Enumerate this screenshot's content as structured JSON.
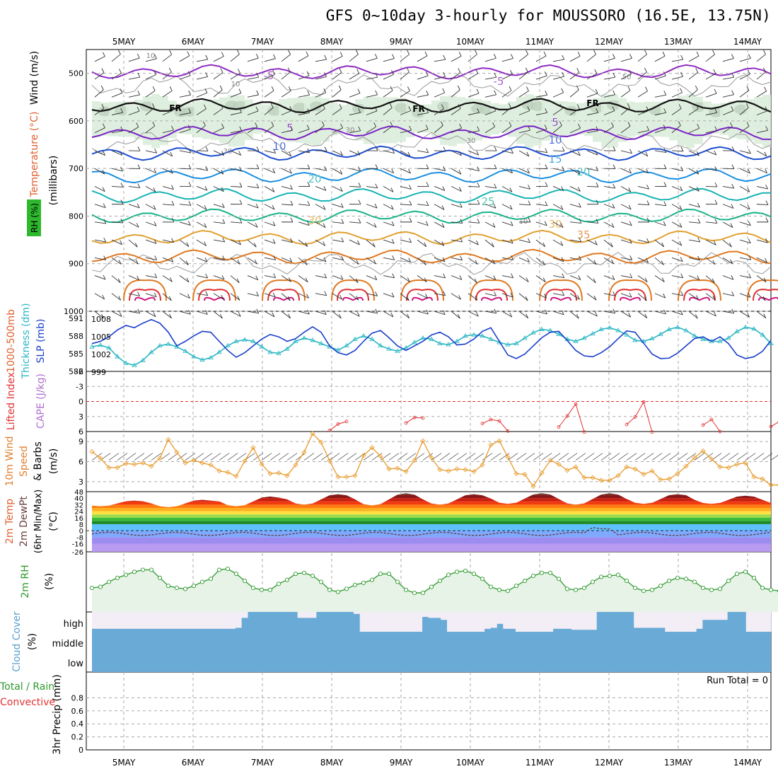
{
  "title": "GFS 0~10day 3-hourly for MOUSSORO (16.5E, 13.75N)",
  "day_labels": [
    "5MAY",
    "6MAY",
    "7MAY",
    "8MAY",
    "9MAY",
    "10MAY",
    "11MAY",
    "12MAY",
    "13MAY",
    "14MAY"
  ],
  "colors": {
    "rh_fill": "#d9ecd9",
    "rh_dark": "#b8ccb8",
    "wind_barb": "#333333",
    "thickness": "#2ab7c4",
    "slp": "#1a3fc9",
    "lifted": "#e33232",
    "wind_speed": "#e89a2a",
    "rh2m": "#2e9a2e",
    "cloud": "#6aaad6",
    "cloud_gap": "#f3eef6"
  },
  "chart_data": [
    {
      "type": "contour",
      "panel": "upper",
      "ylabel_parts": [
        "RH (%)",
        "Temperature (°C)",
        "Wind (m/s)",
        "(millibars)"
      ],
      "y_axis": "pressure",
      "ylim": [
        1000,
        450
      ],
      "yticks": [
        500,
        600,
        700,
        800,
        900,
        1000
      ],
      "freezing_label": "FR",
      "temperature_labels": [
        "-5",
        "-5",
        "5",
        "5",
        "10",
        "10",
        "15",
        "20",
        "20",
        "25",
        "30",
        "30",
        "35"
      ],
      "rh_labels": [
        "10",
        "10",
        "30",
        "30",
        "30",
        "50",
        "10"
      ],
      "isotherms": [
        {
          "name": "-5",
          "color": "#8e2bc2",
          "level": 497
        },
        {
          "name": "0",
          "color": "#111111",
          "level": 568
        },
        {
          "name": "5",
          "color": "#7a22c7",
          "level": 625
        },
        {
          "name": "10",
          "color": "#1f4fd1",
          "level": 668
        },
        {
          "name": "15",
          "color": "#1b8fe0",
          "level": 715
        },
        {
          "name": "20",
          "color": "#19b3b3",
          "level": 757
        },
        {
          "name": "25",
          "color": "#19b38a",
          "level": 800
        },
        {
          "name": "30",
          "color": "#e0a030",
          "level": 845
        },
        {
          "name": "35",
          "color": "#e07820",
          "level": 885
        }
      ]
    },
    {
      "type": "line",
      "panel": "thickness-slp",
      "ylabel_parts": [
        "1000-500mb",
        "Thickness (dm)",
        "SLP (mb)"
      ],
      "left_ticks": [
        "591",
        "588",
        "585",
        "582"
      ],
      "right_ticks": [
        "1008",
        "1005",
        "1002",
        "999"
      ],
      "series": [
        {
          "name": "1000-500mb Thickness (dm)",
          "ylim": [
            582,
            592
          ],
          "values": [
            586,
            586.3,
            585.8,
            584.2,
            583,
            582.6,
            583.5,
            585,
            586.2,
            586.5,
            586,
            585.2,
            584.2,
            583.6,
            584,
            585,
            586.2,
            587,
            587.3,
            587,
            586,
            585,
            584.8,
            585.6,
            587,
            587.6,
            587.2,
            586.6,
            586,
            585.4,
            586.2,
            587.4,
            588,
            587.4,
            586.2,
            585.6,
            585.2,
            585.8,
            586.8,
            587.6,
            587.4,
            586.6,
            586.4,
            587,
            588,
            588.2,
            588,
            587.4,
            586.8,
            586.4,
            586.6,
            587.6,
            588.6,
            589.2,
            589,
            588.3,
            587.4,
            587,
            587.6,
            588.4,
            589.2,
            589.5,
            589,
            588.2,
            587.2,
            587,
            587.5,
            588.3,
            589.2,
            589.6,
            589,
            588,
            587.4,
            587,
            587,
            587.6,
            588.8,
            589.6,
            589.3,
            588.2,
            586.6
          ]
        },
        {
          "name": "SLP (mb)",
          "ylim": [
            998,
            1010
          ],
          "values": [
            1003.5,
            1004,
            1005,
            1006.5,
            1007.5,
            1007,
            1008,
            1008.8,
            1008,
            1006,
            1003,
            1004,
            1005.2,
            1006.2,
            1006,
            1004,
            1002,
            1000.5,
            1001.5,
            1003,
            1004.5,
            1005.5,
            1005,
            1004,
            1004.6,
            1006,
            1007.2,
            1006,
            1003,
            1001.5,
            1001,
            1002,
            1004,
            1005.8,
            1006.4,
            1004.8,
            1003,
            1002,
            1003,
            1004,
            1005.4,
            1006,
            1005,
            1003.2,
            1003.4,
            1004.5,
            1006.2,
            1007,
            1004,
            1001,
            1000.2,
            1001.2,
            1003,
            1004.8,
            1006,
            1006.2,
            1004.2,
            1002,
            1000.8,
            1000.6,
            1001.5,
            1002.8,
            1004.6,
            1006.3,
            1006,
            1003.6,
            1001.2,
            1000.2,
            1000.3,
            1001.4,
            1003,
            1004.6,
            1005,
            1004,
            1005,
            1003.5,
            1001,
            1000.2,
            1000.6,
            1001.8,
            1004.2
          ]
        }
      ]
    },
    {
      "type": "line",
      "panel": "lifted-index",
      "ylabel_parts": [
        "Lifted Index",
        "CAPE (J/kg)"
      ],
      "yticks": [
        "-6",
        "-3",
        "0",
        "3",
        "6"
      ],
      "ylim": [
        6,
        -6
      ],
      "segments": [
        {
          "x": [
            28,
            29,
            30
          ],
          "values": [
            5.8,
            4.5,
            4
          ]
        },
        {
          "x": [
            37,
            38,
            39
          ],
          "values": [
            4.3,
            3.2,
            3.3
          ]
        },
        {
          "x": [
            46,
            47,
            48,
            49
          ],
          "values": [
            4.4,
            3.6,
            3.9,
            5.9
          ]
        },
        {
          "x": [
            55,
            56,
            57,
            58
          ],
          "values": [
            5.1,
            2.9,
            0.5,
            6.1
          ]
        },
        {
          "x": [
            63,
            64,
            65,
            66
          ],
          "values": [
            4.6,
            3.1,
            0.1,
            6.1
          ]
        },
        {
          "x": [
            72,
            73,
            74
          ],
          "values": [
            4.7,
            3.6,
            6.0
          ]
        },
        {
          "x": [
            80,
            81,
            82,
            83
          ],
          "values": [
            5,
            4,
            3.4,
            5.1
          ]
        },
        {
          "x": [
            84,
            85
          ],
          "values": [
            5.2,
            5.3
          ]
        }
      ]
    },
    {
      "type": "line",
      "panel": "wind-10m",
      "ylabel_parts": [
        "10m Wind",
        "Speed",
        "& Barbs",
        "(m/s)"
      ],
      "yticks": [
        "9",
        "6",
        "3"
      ],
      "ylim": [
        1.5,
        10.5
      ],
      "values": [
        7.5,
        6.5,
        5.1,
        5.1,
        5.7,
        5.6,
        5.8,
        5.3,
        6.5,
        9.3,
        7.4,
        5.8,
        6.2,
        5.8,
        5.5,
        4.6,
        4.4,
        3.8,
        6.1,
        8.1,
        5.6,
        4.2,
        4.3,
        3.9,
        5.5,
        7.4,
        10.2,
        8.9,
        6.1,
        3.7,
        3.7,
        3.9,
        6.9,
        8.1,
        6.8,
        4.9,
        5,
        4.5,
        6.2,
        9.1,
        6.6,
        4.8,
        4.6,
        4.9,
        4.8,
        4.5,
        5.5,
        8.5,
        9.1,
        6.7,
        4.2,
        4.1,
        2.3,
        4.3,
        6.2,
        5.6,
        4.7,
        5.2,
        3.6,
        3.6,
        3.2,
        3.2,
        3.9,
        5.2,
        4.9,
        4.1,
        4.6,
        3.3,
        3.4,
        4.2,
        5.3,
        6.6,
        7.6,
        6.4,
        5.2,
        5.1,
        5.6,
        5.8,
        3.7,
        3.4,
        2.5,
        2.5,
        2.7,
        3.1,
        4.4,
        3.2
      ]
    },
    {
      "type": "area",
      "panel": "temperature-2m",
      "ylabel_parts": [
        "2m Temp",
        "2m DewPt",
        "(6hr Min/Max)",
        "(°C)"
      ],
      "yticks": [
        "48",
        "40",
        "32",
        "24",
        "16",
        "8",
        "0",
        "-8",
        "-16",
        "-26"
      ],
      "ylim": [
        -26,
        48
      ],
      "daily_max": [
        37,
        38,
        42,
        45,
        46,
        45,
        46,
        46,
        45,
        43
      ],
      "daily_min": [
        30,
        29,
        30,
        32,
        31,
        32,
        33,
        32,
        33,
        33
      ],
      "dewpoint_mean": -4
    },
    {
      "type": "line",
      "panel": "rh-2m",
      "ylabel_parts": [
        "2m RH",
        "(%)"
      ],
      "ylim": [
        0,
        60
      ],
      "values": [
        24,
        25,
        30,
        34,
        37,
        40,
        42,
        42,
        34,
        26,
        24,
        23,
        26,
        30,
        33,
        42,
        43,
        38,
        31,
        24,
        22,
        22,
        28,
        32,
        38,
        39,
        36,
        30,
        22,
        20,
        23,
        27,
        29,
        32,
        38,
        38,
        30,
        22,
        19,
        19,
        25,
        31,
        37,
        40,
        41,
        38,
        33,
        25,
        22,
        21,
        26,
        31,
        36,
        39,
        39,
        33,
        23,
        22,
        24,
        30,
        35,
        36,
        37,
        31,
        24,
        21,
        22,
        26,
        31,
        34,
        33,
        30,
        24,
        22,
        23,
        31,
        38,
        40,
        34,
        24,
        22,
        21,
        24,
        28,
        35,
        41,
        42,
        35
      ]
    },
    {
      "type": "bar",
      "panel": "cloud-cover",
      "ylabel_parts": [
        "Cloud Cover",
        "(%)"
      ],
      "categories": [
        "high",
        "middle",
        "low"
      ],
      "high_cover": [
        15,
        15,
        15,
        15,
        15,
        15,
        15,
        15,
        15,
        15,
        15,
        15,
        15,
        15,
        15,
        15,
        15,
        15,
        15,
        15,
        15,
        15,
        15,
        20,
        70,
        100,
        100,
        100,
        100,
        100,
        100,
        100,
        100,
        70,
        70,
        70,
        100,
        100,
        100,
        100,
        100,
        100,
        90,
        0,
        0,
        0,
        0,
        0,
        0,
        0,
        0,
        0,
        0,
        75,
        70,
        70,
        60,
        0,
        0,
        0,
        0,
        0,
        0,
        15,
        20,
        40,
        15,
        15,
        0,
        0,
        0,
        0,
        0,
        0,
        15,
        15,
        15,
        10,
        10,
        10,
        10,
        100,
        100,
        100,
        100,
        100,
        100,
        20,
        20,
        20,
        20,
        20,
        0,
        0,
        0,
        0,
        0,
        15,
        60,
        60,
        60,
        60,
        100,
        100,
        100,
        0,
        0,
        0,
        0
      ]
    },
    {
      "type": "bar",
      "panel": "precipitation",
      "ylabel_parts": [
        "Total / Rain",
        "Convective",
        "3hr Precip (mm)"
      ],
      "yticks": [
        "0",
        "0.2",
        "0.4",
        "0.6",
        "0.8"
      ],
      "ylim": [
        0,
        1
      ],
      "run_total": "Run Total = 0",
      "values": []
    }
  ]
}
